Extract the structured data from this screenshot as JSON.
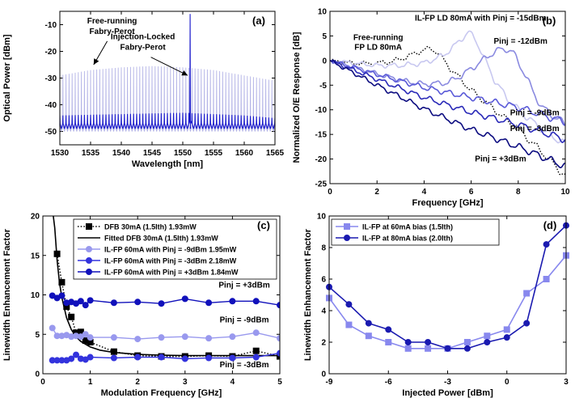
{
  "chart_data": [
    {
      "panel": "(a)",
      "type": "line",
      "xlabel": "Wavelength [nm]",
      "ylabel": "Optical Power [dBm]",
      "xlim": [
        1530,
        1565
      ],
      "ylim": [
        -55,
        -5
      ],
      "xticks": [
        1530,
        1535,
        1540,
        1545,
        1550,
        1555,
        1560,
        1565
      ],
      "yticks": [
        -50,
        -40,
        -30,
        -20,
        -10
      ],
      "grid": false,
      "series": [
        {
          "key": "free",
          "color": "#b3b3e6",
          "mode_spacing_nm": 0.5,
          "floor_dbm": -50,
          "peaks_x": [
            1530,
            1535,
            1540,
            1545,
            1550,
            1555,
            1560,
            1565
          ],
          "peaks_y": [
            -29,
            -27,
            -26,
            -25.5,
            -26,
            -27,
            -29,
            -31
          ]
        },
        {
          "key": "locked",
          "color": "#1a1acc",
          "mode_spacing_nm": 0.5,
          "floor_dbm": -49,
          "peaks_x": [
            1530,
            1540,
            1550,
            1560,
            1565
          ],
          "peaks_y": [
            -44,
            -43.5,
            -43,
            -44,
            -45
          ],
          "spike_x": 1551.2,
          "spike_y": -6
        }
      ],
      "annotations": [
        {
          "key": "free_label",
          "text": [
            "Free-running",
            "Fabry-Perot"
          ],
          "x": 1538.5,
          "y": -9.5,
          "arrow_to": [
            1535.5,
            -25
          ]
        },
        {
          "key": "locked_label",
          "text": [
            "Injection-Locked",
            "Fabry-Perot"
          ],
          "x": 1543.5,
          "y": -15.5,
          "arrow_to": [
            1550.8,
            -29
          ]
        }
      ]
    },
    {
      "panel": "(b)",
      "type": "line",
      "xlabel": "Frequency [GHz]",
      "ylabel": "Normalized O/E Response [dB]",
      "xlim": [
        0,
        10
      ],
      "ylim": [
        -25,
        10
      ],
      "xticks": [
        0,
        2,
        4,
        6,
        8,
        10
      ],
      "yticks": [
        -25,
        -20,
        -15,
        -10,
        -5,
        0,
        5,
        10
      ],
      "grid": false,
      "series": [
        {
          "key": "free",
          "style": "dotted",
          "color": "#000000",
          "x": [
            0,
            0.5,
            1,
            1.5,
            2,
            2.5,
            3,
            3.5,
            4,
            4.3,
            4.6,
            5,
            5.5,
            6,
            7,
            8,
            9,
            10
          ],
          "y": [
            0,
            -0.3,
            -0.5,
            -0.6,
            -0.5,
            -0.3,
            0.3,
            1.2,
            2.2,
            2.4,
            1.6,
            -1,
            -3.5,
            -6,
            -10,
            -14,
            -18.5,
            -23.5
          ]
        },
        {
          "key": "m15",
          "color": "#c8c8f0",
          "x": [
            0,
            1,
            2,
            3,
            4,
            4.8,
            5.3,
            5.6,
            5.9,
            6.2,
            6.6,
            7,
            7.5,
            8,
            9,
            10
          ],
          "y": [
            0,
            -0.5,
            -1,
            -1,
            -0.5,
            1,
            3,
            4.5,
            5.8,
            4.2,
            0,
            -4,
            -7.5,
            -10,
            -14,
            -17
          ]
        },
        {
          "key": "m12",
          "color": "#8a8ae0",
          "x": [
            0,
            1,
            2,
            3,
            4,
            5,
            5.6,
            6.2,
            6.8,
            7.2,
            7.5,
            7.8,
            8.2,
            8.6,
            9,
            10
          ],
          "y": [
            0,
            -1.3,
            -2.7,
            -4,
            -4.8,
            -4.5,
            -3,
            -1,
            1.2,
            2.2,
            2.4,
            1.5,
            -2,
            -6,
            -9.5,
            -13
          ]
        },
        {
          "key": "m9",
          "color": "#5a5ad8",
          "x": [
            0,
            2,
            4,
            6,
            7,
            8,
            9,
            10
          ],
          "y": [
            0,
            -2.8,
            -5.5,
            -7.5,
            -8.5,
            -9.5,
            -11,
            -12.5
          ]
        },
        {
          "key": "m3",
          "color": "#2a2ab8",
          "x": [
            0,
            2,
            4,
            6,
            8,
            9,
            10
          ],
          "y": [
            0,
            -3.8,
            -7.5,
            -10.5,
            -13,
            -14.5,
            -16
          ]
        },
        {
          "key": "p3",
          "color": "#0c0c80",
          "x": [
            0,
            2,
            4,
            6,
            8,
            9,
            10
          ],
          "y": [
            0,
            -5,
            -9.8,
            -14,
            -17.5,
            -19.5,
            -21.5
          ]
        }
      ],
      "annotations": [
        {
          "key": "b1",
          "text": "IL-FP LD 80mA with Pinj = -15dBm",
          "x": 6.4,
          "y": 8.1
        },
        {
          "key": "b2",
          "text": [
            "Free-running",
            "FP LD 80mA"
          ],
          "x": 2.05,
          "y": 4.2
        },
        {
          "key": "b3",
          "text": "Pinj = -12dBm",
          "x": 8.1,
          "y": 3.4
        },
        {
          "key": "b4",
          "text": "Pinj = -9dBm",
          "x": 8.7,
          "y": -11.1
        },
        {
          "key": "b5",
          "text": "Pinj = -3dBm",
          "x": 8.7,
          "y": -14.3
        },
        {
          "key": "b6",
          "text": "Pinj = +3dBm",
          "x": 7.25,
          "y": -20.5
        }
      ]
    },
    {
      "panel": "(c)",
      "type": "line",
      "xlabel": "Modulation Frequency [GHz]",
      "ylabel": "Linewidth Enhancement Factor",
      "xlim": [
        0,
        5
      ],
      "ylim": [
        0,
        20
      ],
      "xticks": [
        0,
        1,
        2,
        3,
        4,
        5
      ],
      "yticks": [
        0,
        5,
        10,
        15,
        20
      ],
      "grid": false,
      "legend": "top-right",
      "series": [
        {
          "key": "dfb",
          "name": "DFB 30mA (1.5Ith)  1.93mW",
          "style": "dotted",
          "marker": "square",
          "color": "#000000",
          "x": [
            0.3,
            0.4,
            0.5,
            0.6,
            0.7,
            0.8,
            0.9,
            1.0,
            1.5,
            2.0,
            2.5,
            3.0,
            3.5,
            4.0,
            4.5,
            5.0
          ],
          "y": [
            15.2,
            11.6,
            8.5,
            7.2,
            5.2,
            5.3,
            4.2,
            4.0,
            2.8,
            2.3,
            2.2,
            2.2,
            2.3,
            2.2,
            2.9,
            2.2
          ]
        },
        {
          "key": "fit",
          "name": "Fitted DFB 30mA (1.5Ith)  1.93mW",
          "style": "solid",
          "color": "#000000",
          "x": [
            0.22,
            0.25,
            0.3,
            0.35,
            0.4,
            0.5,
            0.6,
            0.7,
            0.8,
            1.0,
            1.2,
            1.5,
            2.0,
            2.5,
            3.0,
            4.0,
            5.0
          ],
          "y": [
            20,
            18.5,
            14.4,
            11.6,
            9.7,
            7.1,
            5.6,
            4.7,
            4.1,
            3.4,
            3.0,
            2.7,
            2.45,
            2.35,
            2.3,
            2.3,
            2.3
          ]
        },
        {
          "key": "m9",
          "name": "IL-FP 60mA with Pinj = -9dBm  1.95mW",
          "marker": "circle",
          "color": "#9999ee",
          "x": [
            0.2,
            0.3,
            0.4,
            0.5,
            0.6,
            0.7,
            0.8,
            0.9,
            1.0,
            1.5,
            2.0,
            2.5,
            3.0,
            3.5,
            4.0,
            4.5,
            5.0
          ],
          "y": [
            5.8,
            4.8,
            4.8,
            4.9,
            4.7,
            4.8,
            4.7,
            5.0,
            4.6,
            4.6,
            4.4,
            4.6,
            4.7,
            4.5,
            4.7,
            5.2,
            4.5
          ]
        },
        {
          "key": "m3",
          "name": "IL-FP 60mA with Pinj = -3dBm  2.18mW",
          "marker": "circle",
          "color": "#3333dd",
          "x": [
            0.2,
            0.3,
            0.4,
            0.5,
            0.6,
            0.7,
            0.8,
            0.9,
            1.0,
            1.5,
            2.0,
            2.5,
            3.0,
            3.5,
            4.0,
            4.5,
            5.0
          ],
          "y": [
            1.7,
            1.7,
            1.7,
            1.7,
            1.9,
            2.4,
            1.9,
            1.8,
            2.1,
            2.0,
            2.1,
            2.1,
            1.9,
            2.0,
            2.0,
            2.1,
            2.6
          ]
        },
        {
          "key": "p3",
          "name": "IL-FP 60mA with Pinj = +3dBm  1.84mW",
          "marker": "circle",
          "color": "#1111bb",
          "x": [
            0.2,
            0.3,
            0.4,
            0.5,
            0.6,
            0.7,
            0.8,
            0.9,
            1.0,
            1.5,
            2.0,
            2.5,
            3.0,
            3.5,
            4.0,
            4.5,
            5.0
          ],
          "y": [
            9.9,
            9.6,
            9.9,
            9.0,
            9.1,
            8.9,
            9.2,
            8.7,
            9.3,
            9.0,
            9.1,
            8.9,
            9.5,
            9.0,
            9.2,
            9.2,
            8.7
          ]
        }
      ],
      "annotations": [
        {
          "key": "c1",
          "text": "Pinj = +3dBm",
          "x": 4.25,
          "y": 10.9
        },
        {
          "key": "c2",
          "text": "Pinj = -9dBm",
          "x": 4.25,
          "y": 6.5
        },
        {
          "key": "c3",
          "text": "Pinj = -3dBm",
          "x": 4.25,
          "y": 0.8
        }
      ]
    },
    {
      "panel": "(d)",
      "type": "line",
      "xlabel": "Injected Power [dBm]",
      "ylabel": "Linewidth Enhancement Factor",
      "xlim": [
        -9,
        3
      ],
      "ylim": [
        0,
        10
      ],
      "xticks": [
        -9,
        -6,
        -3,
        0,
        3
      ],
      "yticks": [
        0,
        2,
        4,
        6,
        8,
        10
      ],
      "grid": false,
      "legend": "top-left",
      "series": [
        {
          "key": "s60",
          "name": "IL-FP at 60mA bias (1.5Ith)",
          "marker": "square",
          "color": "#8888ee",
          "x": [
            -9,
            -8,
            -7,
            -6,
            -5,
            -4,
            -3,
            -2,
            -1,
            0,
            1,
            2,
            3
          ],
          "y": [
            4.8,
            3.1,
            2.4,
            2.0,
            1.6,
            1.6,
            1.6,
            2.0,
            2.4,
            2.8,
            5.1,
            6.0,
            7.5
          ]
        },
        {
          "key": "s80",
          "name": "IL-FP at 80mA bias (2.0Ith)",
          "marker": "circle",
          "color": "#1a1ab0",
          "x": [
            -9,
            -8,
            -7,
            -6,
            -5,
            -4,
            -3,
            -2,
            -1,
            0,
            1,
            2,
            3
          ],
          "y": [
            5.5,
            4.4,
            3.2,
            2.8,
            2.0,
            2.0,
            1.6,
            1.6,
            2.0,
            2.3,
            3.2,
            8.2,
            9.4
          ]
        }
      ]
    }
  ]
}
